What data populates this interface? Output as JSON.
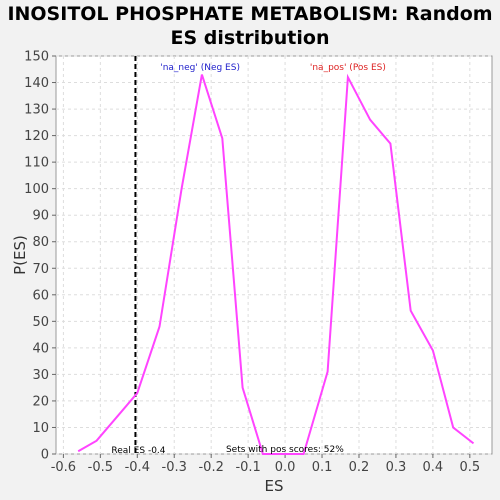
{
  "chart_data": {
    "type": "line",
    "title_line1": "INOSITOL PHOSPHATE METABOLISM: Random",
    "title_line2": "ES distribution",
    "xlabel": "ES",
    "ylabel": "P(ES)",
    "xlim": [
      -0.62,
      0.56
    ],
    "ylim": [
      0,
      150
    ],
    "xticks": [
      -0.6,
      -0.5,
      -0.4,
      -0.3,
      -0.2,
      -0.1,
      0.0,
      0.1,
      0.2,
      0.3,
      0.4,
      0.5
    ],
    "xtick_labels": [
      "-0.6",
      "-0.5",
      "-0.4",
      "-0.3",
      "-0.2",
      "-0.1",
      "0.0",
      "0.1",
      "0.2",
      "0.3",
      "0.4",
      "0.5"
    ],
    "yticks": [
      0,
      10,
      20,
      30,
      40,
      50,
      60,
      70,
      80,
      90,
      100,
      110,
      120,
      130,
      140,
      150
    ],
    "grid": true,
    "series": [
      {
        "color": "#ff44ff",
        "x": [
          -0.56,
          -0.51,
          -0.4,
          -0.34,
          -0.28,
          -0.225,
          -0.17,
          -0.115,
          -0.06,
          -0.005,
          0.05,
          0.115,
          0.17,
          0.23,
          0.285,
          0.34,
          0.4,
          0.455,
          0.51
        ],
        "y": [
          1,
          5,
          23,
          48,
          100,
          143,
          119,
          25,
          0,
          0,
          0,
          31,
          142,
          126,
          117,
          54,
          39,
          10,
          4
        ]
      }
    ],
    "annotations": {
      "neg_label": "'na_neg' (Neg ES)",
      "neg_color": "#2222cc",
      "pos_label": "'na_pos' (Pos ES)",
      "pos_color": "#dd2222",
      "real_es_label": "Real ES -0.4",
      "real_es_value": -0.405,
      "pos_scores_label": "Sets with pos scores: 52%"
    }
  }
}
